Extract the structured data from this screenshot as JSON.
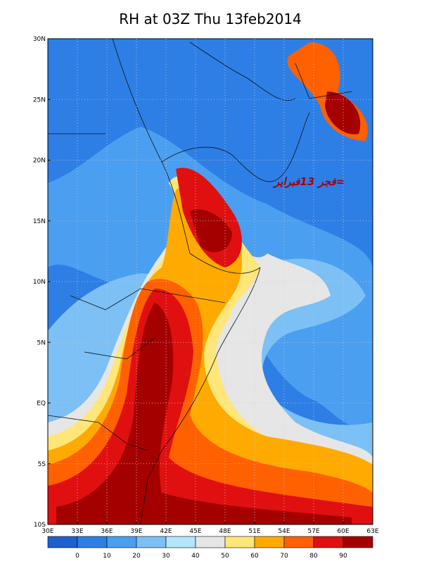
{
  "title": "RH at 03Z Thu 13feb2014",
  "lat_labels": [
    "30N",
    "25N",
    "20N",
    "15N",
    "10N",
    "5N",
    "EQ",
    "5S",
    "10S"
  ],
  "lon_labels": [
    "30E",
    "33E",
    "36E",
    "39E",
    "42E",
    "45E",
    "48E",
    "51E",
    "54E",
    "57E",
    "60E",
    "63E"
  ],
  "annotation": "=فجر 13فبراير",
  "colorbar": {
    "labels": [
      "0",
      "10",
      "20",
      "30",
      "40",
      "50",
      "60",
      "70",
      "80",
      "90"
    ],
    "colors": [
      "#1f5fd0",
      "#2d7fe6",
      "#4a9ff0",
      "#7cc0f5",
      "#b4e6fa",
      "#e6e6e6",
      "#ffe678",
      "#ffaa00",
      "#ff6000",
      "#e01010",
      "#a50000"
    ]
  }
}
